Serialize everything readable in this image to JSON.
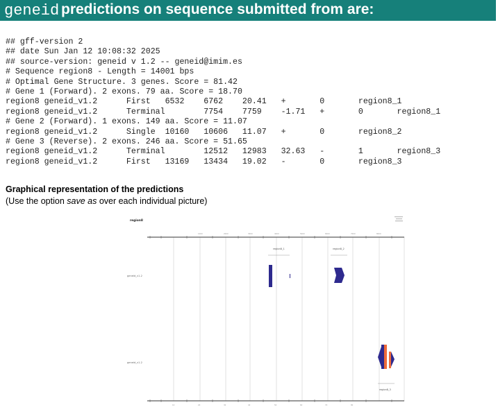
{
  "header": {
    "brand": "geneid",
    "title": " predictions on sequence submitted from are:"
  },
  "gff": {
    "lines": [
      "## gff-version 2",
      "## date Sun Jan 12 10:08:32 2025",
      "## source-version: geneid v 1.2 -- geneid@imim.es",
      "# Sequence region8 - Length = 14001 bps",
      "# Optimal Gene Structure. 3 genes. Score = 81.42",
      "# Gene 1 (Forward). 2 exons. 79 aa. Score = 18.70",
      "region8 geneid_v1.2      First   6532    6762    20.41   +       0       region8_1",
      "region8 geneid_v1.2      Terminal        7754    7759    -1.71   +       0       region8_1",
      "# Gene 2 (Forward). 1 exons. 149 aa. Score = 11.07",
      "region8 geneid_v1.2      Single  10160   10606   11.07   +       0       region8_2",
      "# Gene 3 (Reverse). 2 exons. 246 aa. Score = 51.65",
      "region8 geneid_v1.2      Terminal        12512   12983   32.63   -       1       region8_3",
      "region8 geneid_v1.2      First   13169   13434   19.02   -       0       region8_3"
    ]
  },
  "graphics": {
    "title": "Graphical representation of the predictions",
    "note_prefix": "(Use the option ",
    "note_em": "save as",
    "note_suffix": " over each individual picture)"
  },
  "figure": {
    "seq_name": "region8",
    "track1_label": "geneid_v1.2",
    "track2_label": "geneid_v1.2",
    "gene1_label": "region8_1",
    "gene2_label": "region8_2",
    "gene3_label": "region8_3",
    "colors": {
      "exon_blue": "#2e2a8e",
      "exon_orange": "#ee6a3a",
      "grid": "#cfcfcf"
    }
  }
}
